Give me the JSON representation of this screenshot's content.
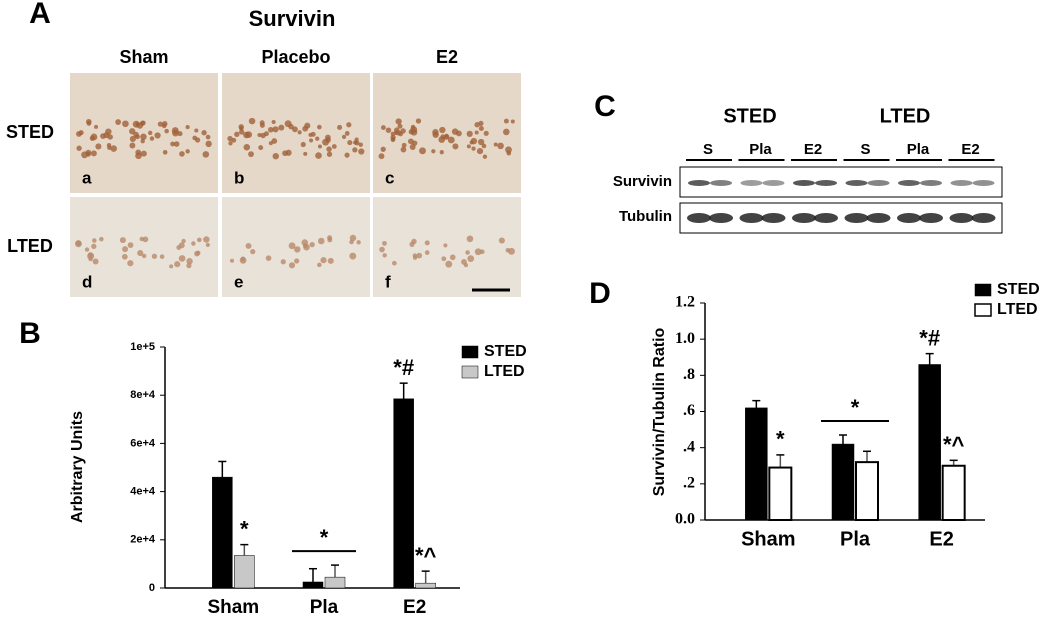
{
  "panel_a": {
    "label": "A",
    "title": "Survivin",
    "columns": [
      "Sham",
      "Placebo",
      "E2"
    ],
    "rows": [
      "STED",
      "LTED"
    ],
    "letters": [
      "a",
      "b",
      "c",
      "d",
      "e",
      "f"
    ]
  },
  "panel_c": {
    "label": "C",
    "groups": [
      "STED",
      "LTED"
    ],
    "lanes": [
      "S",
      "Pla",
      "E2",
      "S",
      "Pla",
      "E2"
    ],
    "blots": [
      "Survivin",
      "Tubulin"
    ]
  },
  "chart_data": [
    {
      "type": "bar",
      "panel": "B",
      "y_label": "Arbitrary Units",
      "categories": [
        "Sham",
        "Pla",
        "E2"
      ],
      "series": [
        {
          "name": "STED",
          "color": "#000000",
          "values": [
            46000,
            2500,
            78500
          ],
          "errors": [
            6500,
            5500,
            6500
          ],
          "annotations": [
            null,
            null,
            "*#"
          ]
        },
        {
          "name": "LTED",
          "color": "#c8c8c8",
          "values": [
            13500,
            4500,
            2000
          ],
          "errors": [
            4500,
            5000,
            5000
          ],
          "annotations": [
            "*",
            null,
            "*^"
          ]
        }
      ],
      "category_annotations": [
        null,
        "*",
        null
      ],
      "ylim": [
        0,
        100000
      ],
      "yticks": [
        0,
        {
          "value": 20000,
          "label": "2e+4"
        },
        {
          "value": 40000,
          "label": "4e+4"
        },
        {
          "value": 60000,
          "label": "6e+4"
        },
        {
          "value": 80000,
          "label": "8e+4"
        },
        {
          "value": 100000,
          "label": "1e+5"
        }
      ],
      "grid": false
    },
    {
      "type": "bar",
      "panel": "D",
      "y_label": "Survivin/Tubulin Ratio",
      "categories": [
        "Sham",
        "Pla",
        "E2"
      ],
      "series": [
        {
          "name": "STED",
          "color": "#000000",
          "values": [
            0.62,
            0.42,
            0.86
          ],
          "errors": [
            0.04,
            0.05,
            0.06
          ],
          "annotations": [
            null,
            null,
            "*#"
          ]
        },
        {
          "name": "LTED",
          "color": "#ffffff",
          "values": [
            0.29,
            0.32,
            0.3
          ],
          "errors": [
            0.07,
            0.06,
            0.03
          ],
          "annotations": [
            "*",
            null,
            "*^"
          ]
        }
      ],
      "category_annotations": [
        null,
        "*",
        null
      ],
      "ylim": [
        0,
        1.2
      ],
      "yticks": [
        {
          "value": 0,
          "label": "0.0"
        },
        {
          "value": 0.2,
          "label": ".2"
        },
        {
          "value": 0.4,
          "label": ".4"
        },
        {
          "value": 0.6,
          "label": ".6"
        },
        {
          "value": 0.8,
          "label": ".8"
        },
        {
          "value": 1,
          "label": "1.0"
        },
        {
          "value": 1.2,
          "label": "1.2"
        }
      ],
      "grid": false
    }
  ]
}
